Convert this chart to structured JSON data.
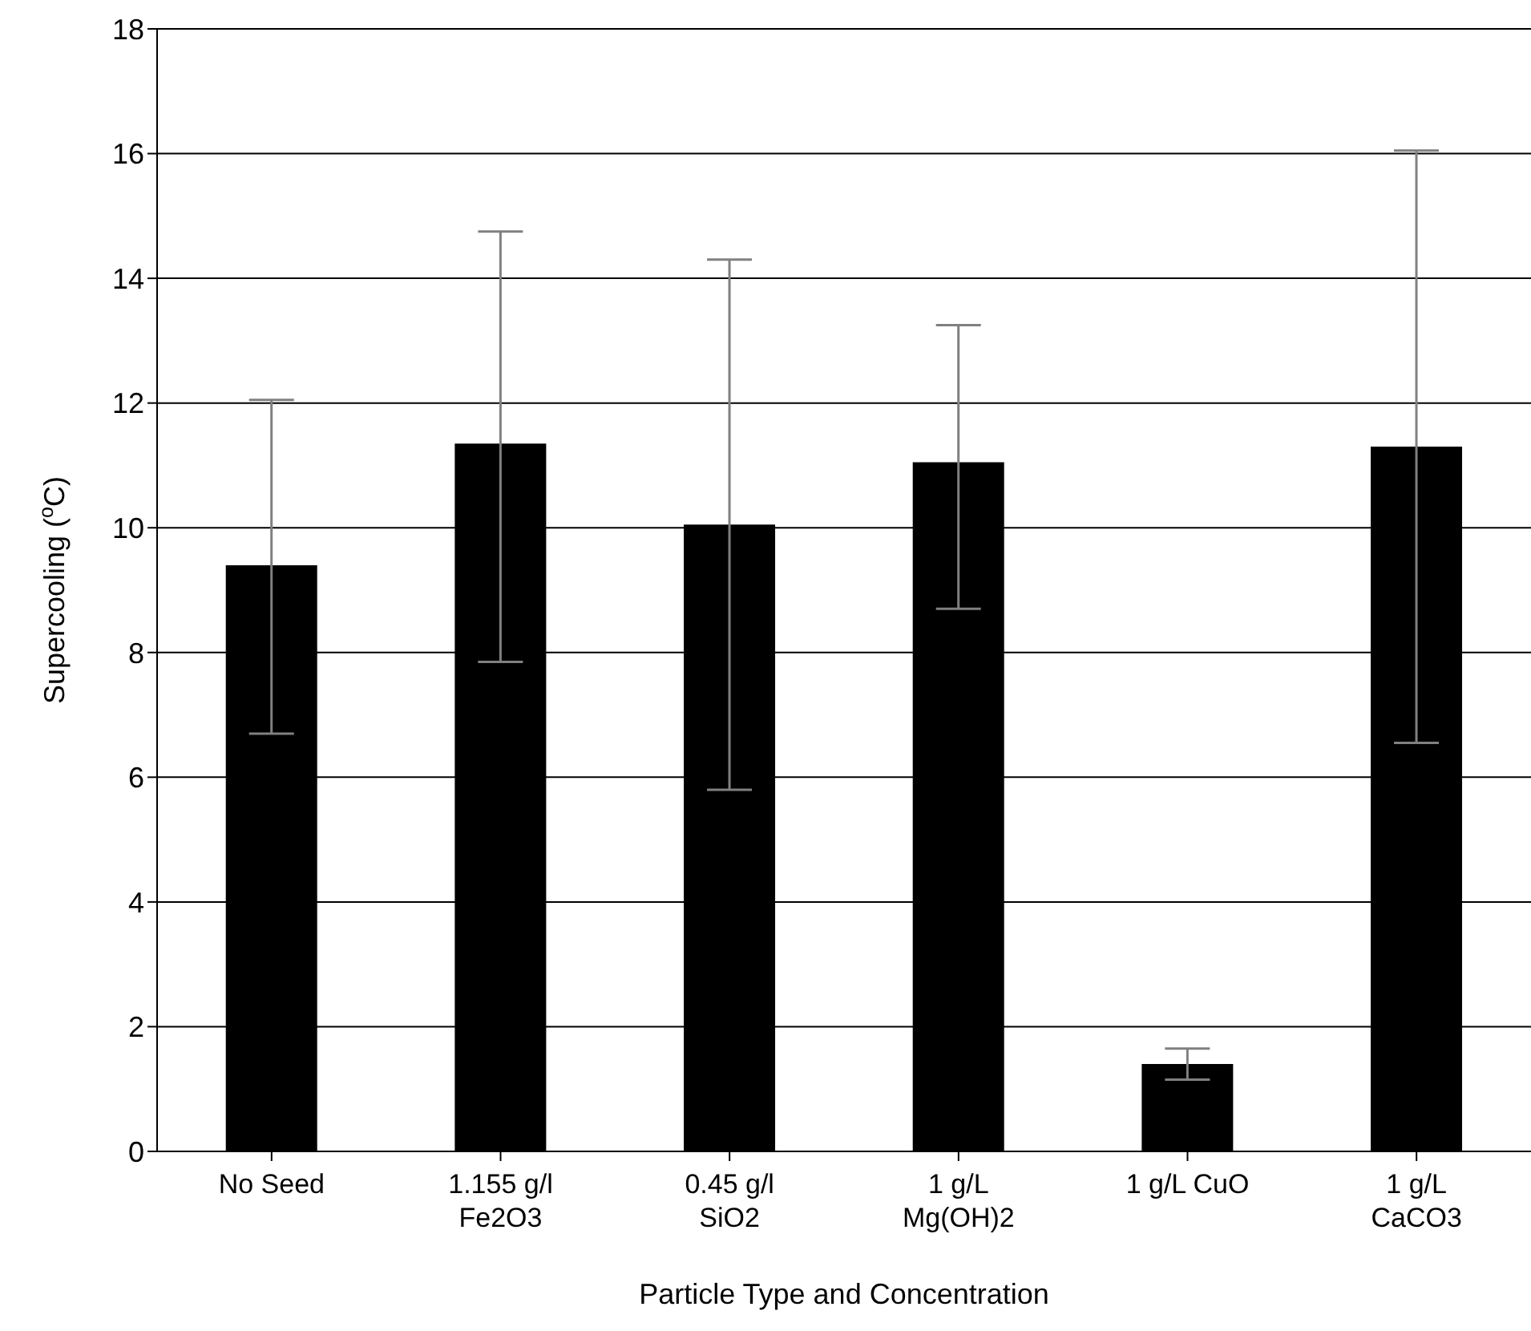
{
  "chart_data": {
    "type": "bar",
    "xlabel": "Particle Type and Concentration",
    "ylabel": "Supercooling ($^{o}$C)",
    "categories": [
      "No Seed",
      "1.155 g/l\nFe2O3",
      "0.45 g/l\nSiO2",
      "1 g/L\nMg(OH)2",
      "1 g/L CuO",
      "1 g/L\nCaCO3"
    ],
    "values": [
      9.4,
      11.35,
      10.05,
      11.05,
      1.4,
      11.3
    ],
    "errors": [
      [
        6.7,
        12.05
      ],
      [
        7.85,
        14.75
      ],
      [
        5.8,
        14.3
      ],
      [
        8.7,
        13.25
      ],
      [
        1.15,
        1.65
      ],
      [
        6.55,
        16.05
      ]
    ],
    "color": "#000000",
    "ylim": [
      0,
      18
    ],
    "yticks": [
      0,
      2,
      4,
      6,
      8,
      10,
      12,
      14,
      16,
      18
    ],
    "grid": "y"
  }
}
